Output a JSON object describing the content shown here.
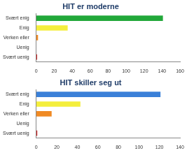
{
  "chart_data": [
    {
      "type": "bar",
      "orientation": "horizontal",
      "title": "HIT er moderne",
      "categories": [
        "Svært enig",
        "Enig",
        "Verken eller",
        "Uenig",
        "Svært uenig"
      ],
      "values": [
        141,
        35,
        2,
        0,
        1
      ],
      "colors": [
        "#22a83a",
        "#f4ee3c",
        "#f08a24",
        "#a0a0a0",
        "#cc2a2a"
      ],
      "xlim": [
        0,
        160
      ],
      "xticks": [
        0,
        20,
        40,
        60,
        80,
        100,
        120,
        140,
        160
      ],
      "grid": false
    },
    {
      "type": "bar",
      "orientation": "horizontal",
      "title": "HIT skiller seg ut",
      "categories": [
        "Svært enig",
        "Enig",
        "Verken eller",
        "Uenig",
        "Svært uenig"
      ],
      "values": [
        121,
        43,
        15,
        0,
        1
      ],
      "colors": [
        "#3a80d8",
        "#f4ee3c",
        "#f08a24",
        "#a0a0a0",
        "#cc2a2a"
      ],
      "xlim": [
        0,
        140
      ],
      "xticks": [
        0,
        20,
        40,
        60,
        80,
        100,
        120,
        140
      ],
      "grid": false
    }
  ]
}
